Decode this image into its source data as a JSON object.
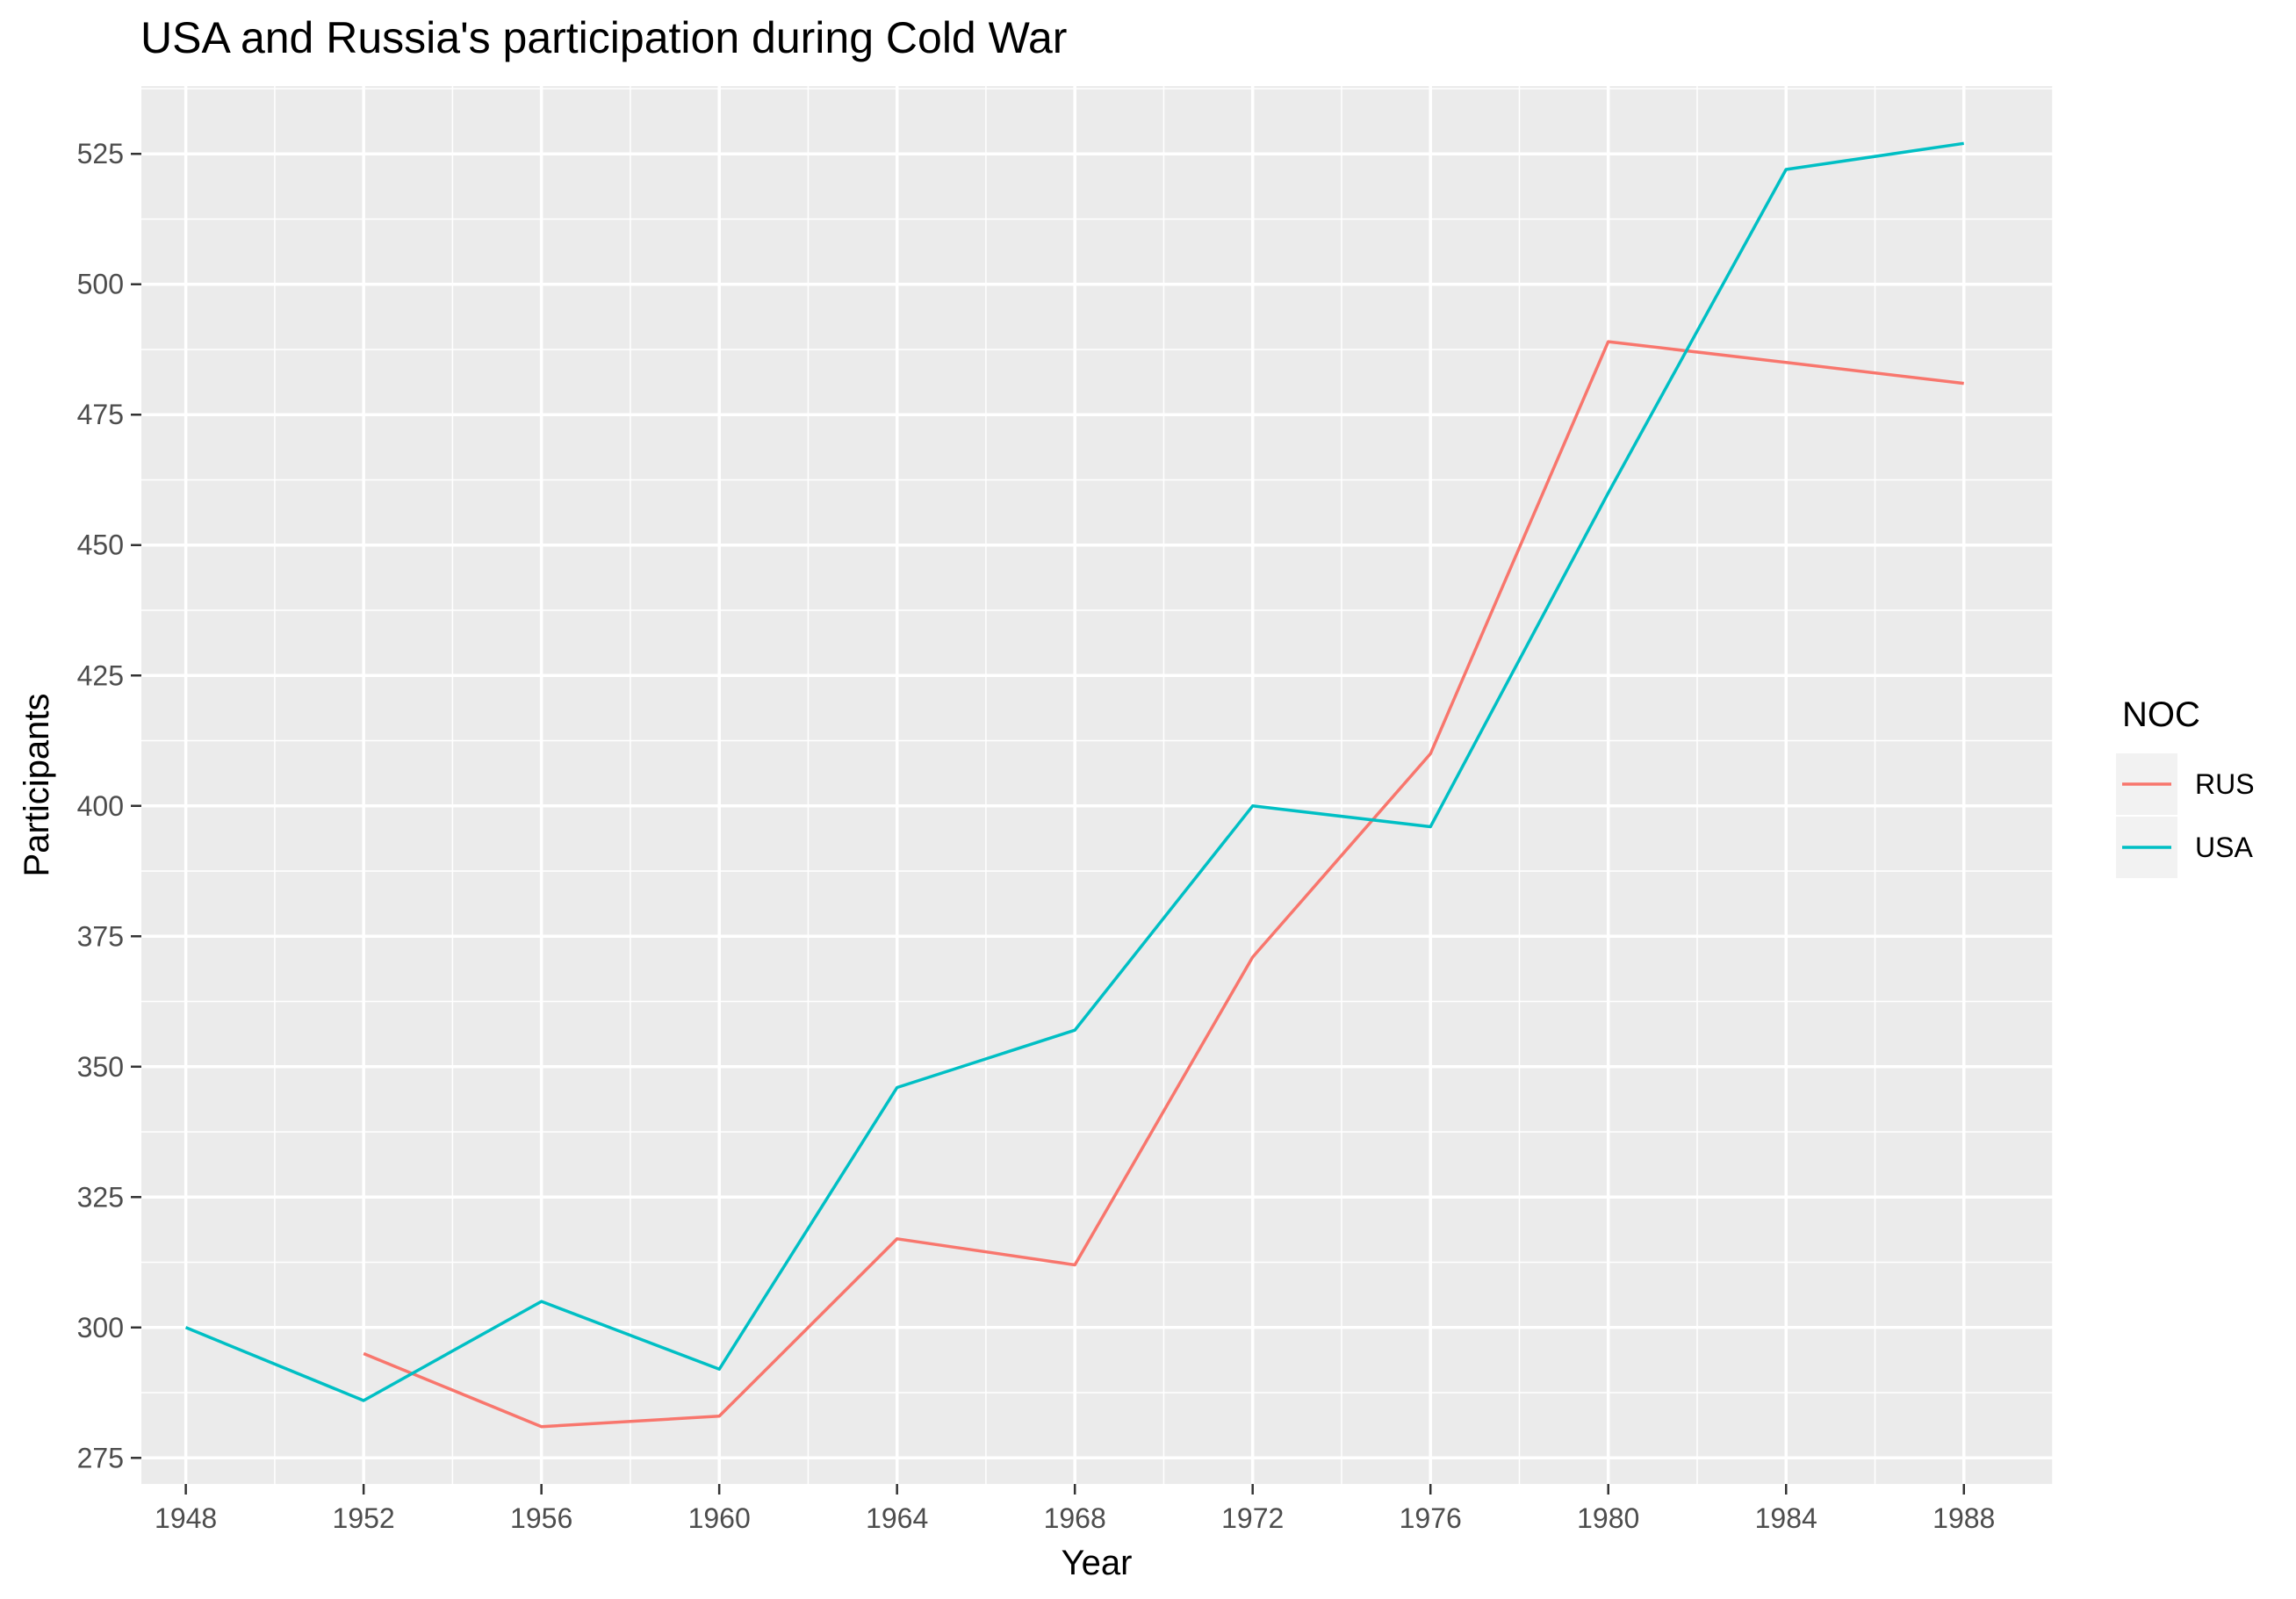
{
  "chart_data": {
    "type": "line",
    "title": "USA and Russia's participation during Cold War",
    "xlabel": "Year",
    "ylabel": "Participants",
    "xlim": [
      1947,
      1990
    ],
    "ylim": [
      270,
      538
    ],
    "x_ticks": [
      1948,
      1952,
      1956,
      1960,
      1964,
      1968,
      1972,
      1976,
      1980,
      1984,
      1988
    ],
    "y_ticks": [
      275,
      300,
      325,
      350,
      375,
      400,
      425,
      450,
      475,
      500,
      525
    ],
    "grid": true,
    "legend": {
      "title": "NOC",
      "position": "right"
    },
    "series": [
      {
        "name": "RUS",
        "color": "#F8766D",
        "x": [
          1952,
          1956,
          1960,
          1964,
          1968,
          1972,
          1976,
          1980,
          1984,
          1988
        ],
        "values": [
          295,
          281,
          283,
          317,
          312,
          371,
          410,
          489,
          485,
          481
        ]
      },
      {
        "name": "USA",
        "color": "#00BFC4",
        "x": [
          1948,
          1952,
          1956,
          1960,
          1964,
          1968,
          1972,
          1976,
          1980,
          1984,
          1988
        ],
        "values": [
          300,
          286,
          305,
          292,
          346,
          357,
          400,
          396,
          460,
          522,
          527
        ]
      }
    ]
  }
}
